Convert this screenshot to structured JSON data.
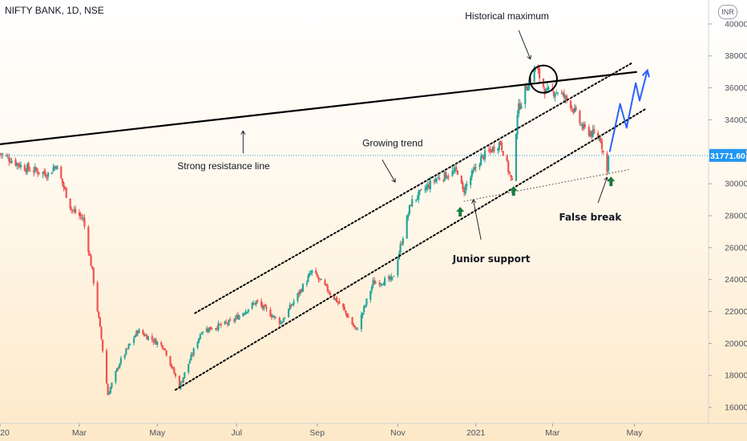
{
  "header": {
    "symbol_title": "NIFTY BANK, 1D, NSE",
    "currency": "INR"
  },
  "colors": {
    "up_candle": "#26a69a",
    "down_candle": "#ef5350",
    "trend_lines": "#000000",
    "forecast_arrow": "#2962ff",
    "support_arrows": "#1b7a3e",
    "price_line": "#2196f3",
    "price_label_bg": "#2196f3"
  },
  "chart_data": {
    "type": "candlestick",
    "symbol": "NIFTY BANK",
    "interval": "1D",
    "exchange": "NSE",
    "currency": "INR",
    "last_price": 31771.6,
    "last_price_label": "31771.60",
    "ylim": [
      15000,
      41500
    ],
    "y_ticks": [
      16000,
      18000,
      20000,
      22000,
      24000,
      26000,
      28000,
      30000,
      32000,
      34000,
      36000,
      38000,
      40000
    ],
    "y_tick_labels": [
      "16000.00",
      "18000.00",
      "20000.00",
      "22000.00",
      "24000.00",
      "26000.00",
      "28000.00",
      "30000.00",
      "32000.00",
      "34000.00",
      "36000.00",
      "38000.00",
      "40000.00"
    ],
    "x_range": [
      "2020-01-01",
      "2021-06-29"
    ],
    "x_ticks": [
      {
        "date": "2020-01-01",
        "label": "20"
      },
      {
        "date": "2020-03-02",
        "label": "Mar"
      },
      {
        "date": "2020-05-01",
        "label": "May"
      },
      {
        "date": "2020-07-01",
        "label": "Jul"
      },
      {
        "date": "2020-09-01",
        "label": "Sep"
      },
      {
        "date": "2020-11-02",
        "label": "Nov"
      },
      {
        "date": "2021-01-01",
        "label": "2021"
      },
      {
        "date": "2021-03-01",
        "label": "Mar"
      },
      {
        "date": "2021-05-03",
        "label": "May"
      }
    ],
    "anchors": [
      {
        "date": "2020-01-01",
        "close": 31900
      },
      {
        "date": "2020-01-20",
        "close": 31000
      },
      {
        "date": "2020-02-07",
        "close": 30600
      },
      {
        "date": "2020-02-13",
        "close": 31200
      },
      {
        "date": "2020-02-25",
        "close": 28400
      },
      {
        "date": "2020-03-05",
        "close": 27800
      },
      {
        "date": "2020-03-12",
        "close": 24500
      },
      {
        "date": "2020-03-19",
        "close": 20300
      },
      {
        "date": "2020-03-24",
        "close": 16800
      },
      {
        "date": "2020-04-02",
        "close": 18800
      },
      {
        "date": "2020-04-16",
        "close": 20800
      },
      {
        "date": "2020-05-06",
        "close": 19800
      },
      {
        "date": "2020-05-18",
        "close": 17300
      },
      {
        "date": "2020-06-04",
        "close": 20800
      },
      {
        "date": "2020-06-26",
        "close": 21300
      },
      {
        "date": "2020-07-16",
        "close": 22600
      },
      {
        "date": "2020-08-04",
        "close": 21300
      },
      {
        "date": "2020-08-28",
        "close": 24500
      },
      {
        "date": "2020-09-20",
        "close": 22300
      },
      {
        "date": "2020-10-01",
        "close": 20800
      },
      {
        "date": "2020-10-14",
        "close": 23800
      },
      {
        "date": "2020-10-29",
        "close": 24000
      },
      {
        "date": "2020-11-12",
        "close": 28800
      },
      {
        "date": "2020-12-01",
        "close": 30300
      },
      {
        "date": "2020-12-18",
        "close": 30800
      },
      {
        "date": "2020-12-22",
        "close": 29500
      },
      {
        "date": "2021-01-05",
        "close": 31600
      },
      {
        "date": "2021-01-20",
        "close": 32600
      },
      {
        "date": "2021-01-29",
        "close": 30000
      },
      {
        "date": "2021-02-02",
        "close": 34500
      },
      {
        "date": "2021-02-10",
        "close": 36300
      },
      {
        "date": "2021-02-16",
        "close": 37300
      },
      {
        "date": "2021-02-24",
        "close": 35700
      },
      {
        "date": "2021-03-05",
        "close": 35800
      },
      {
        "date": "2021-03-15",
        "close": 35000
      },
      {
        "date": "2021-03-24",
        "close": 33500
      },
      {
        "date": "2021-04-07",
        "close": 32800
      },
      {
        "date": "2021-04-12",
        "close": 30700
      },
      {
        "date": "2021-04-13",
        "close": 31771.6
      }
    ],
    "lines": [
      {
        "name": "strong-resistance",
        "style": "solid",
        "width": 2.2,
        "color": "#000000",
        "from": {
          "date": "2019-12-24",
          "price": 32400
        },
        "to": {
          "date": "2021-05-05",
          "price": 37000
        }
      },
      {
        "name": "channel-upper",
        "style": "dotted",
        "width": 2,
        "color": "#000000",
        "from": {
          "date": "2020-05-30",
          "price": 21900
        },
        "to": {
          "date": "2021-05-02",
          "price": 37600
        }
      },
      {
        "name": "channel-lower",
        "style": "dotted",
        "width": 2,
        "color": "#000000",
        "from": {
          "date": "2020-05-15",
          "price": 17100
        },
        "to": {
          "date": "2021-05-12",
          "price": 34700
        }
      },
      {
        "name": "junior-support",
        "style": "dotted",
        "width": 1,
        "color": "#555555",
        "from": {
          "date": "2020-12-23",
          "price": 28900
        },
        "to": {
          "date": "2021-04-30",
          "price": 30900
        }
      }
    ],
    "forecast_path": [
      {
        "date": "2021-04-14",
        "price": 32000
      },
      {
        "date": "2021-04-22",
        "price": 35000
      },
      {
        "date": "2021-04-27",
        "price": 33500
      },
      {
        "date": "2021-05-04",
        "price": 36300
      },
      {
        "date": "2021-05-07",
        "price": 35200
      },
      {
        "date": "2021-05-13",
        "price": 37100
      }
    ],
    "max_circle": {
      "date": "2021-02-22",
      "price": 36550
    },
    "support_arrows": [
      {
        "date": "2020-12-20",
        "price": 28200
      },
      {
        "date": "2021-01-30",
        "price": 29500
      },
      {
        "date": "2021-04-15",
        "price": 30100
      }
    ],
    "annotations": [
      {
        "name": "historical-maximum-label",
        "text": "Historical maximum",
        "bold": false,
        "date": "2021-01-25",
        "price": 40300
      },
      {
        "name": "strong-resistance-line-label",
        "text": "Strong resistance line",
        "bold": false,
        "date": "2020-06-21",
        "price": 30900
      },
      {
        "name": "growing-trend-label",
        "text": "Growing trend",
        "bold": false,
        "date": "2020-10-29",
        "price": 32350
      },
      {
        "name": "junior-support-label",
        "text": "Junior support",
        "bold": true,
        "date": "2021-01-13",
        "price": 25100
      },
      {
        "name": "false-break-label",
        "text": "False break",
        "bold": true,
        "date": "2021-03-30",
        "price": 27700
      }
    ],
    "pointer_arrows": [
      {
        "name": "historical-maximum-pointer",
        "from": {
          "date": "2021-02-03",
          "price": 39600
        },
        "to": {
          "date": "2021-02-12",
          "price": 37800
        }
      },
      {
        "name": "resistance-pointer",
        "from": {
          "date": "2020-07-06",
          "price": 31900
        },
        "to": {
          "date": "2020-07-06",
          "price": 33300
        }
      },
      {
        "name": "growing-trend-pointer",
        "from": {
          "date": "2020-10-21",
          "price": 31500
        },
        "to": {
          "date": "2020-10-31",
          "price": 30100
        }
      },
      {
        "name": "junior-support-pointer",
        "from": {
          "date": "2021-01-05",
          "price": 26500
        },
        "to": {
          "date": "2020-12-30",
          "price": 29000
        }
      },
      {
        "name": "false-break-pointer",
        "from": {
          "date": "2021-04-05",
          "price": 28800
        },
        "to": {
          "date": "2021-04-12",
          "price": 30400
        }
      }
    ]
  }
}
